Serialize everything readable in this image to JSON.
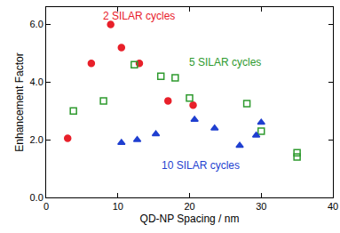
{
  "chart_data": {
    "type": "scatter",
    "x_label": "QD-NP Spacing / nm",
    "y_label": "Enhancement Factor",
    "xlim": [
      0,
      40
    ],
    "xticks": [
      0,
      10,
      20,
      30,
      40
    ],
    "ylim": [
      0,
      6.6
    ],
    "yticks": [
      {
        "value": 0,
        "label": "0.0"
      },
      {
        "value": 2,
        "label": "2.0"
      },
      {
        "value": 4,
        "label": "4.0"
      },
      {
        "value": 6,
        "label": "6.0"
      }
    ],
    "grid": false,
    "series": [
      {
        "name": "2 SILAR cycles",
        "color": "#e8202a",
        "marker": "circle",
        "x": [
          3,
          6.3,
          9,
          10.5,
          13,
          17,
          20.5
        ],
        "values": [
          2.05,
          4.65,
          6.0,
          5.2,
          4.65,
          3.35,
          3.2
        ]
      },
      {
        "name": "5 SILAR cycles",
        "color": "#2e9a2e",
        "marker": "square-open",
        "x": [
          3.8,
          8,
          12.3,
          16,
          18,
          20,
          28,
          30,
          35,
          35
        ],
        "values": [
          3.0,
          3.35,
          4.6,
          4.2,
          4.15,
          3.45,
          3.25,
          2.3,
          1.55,
          1.4
        ]
      },
      {
        "name": "10 SILAR cycles",
        "color": "#1f3fd0",
        "marker": "triangle-up",
        "x": [
          10.5,
          12.7,
          15.3,
          20.7,
          23.5,
          27,
          29.3,
          30
        ],
        "values": [
          1.9,
          2.0,
          2.2,
          2.7,
          2.4,
          1.8,
          2.15,
          2.6
        ]
      }
    ],
    "annotations": [
      {
        "text": "2 SILAR cycles",
        "x": 13,
        "y": 6.3,
        "color": "#e8202a"
      },
      {
        "text": "5 SILAR cycles",
        "x": 25,
        "y": 4.7,
        "color": "#2e9a2e"
      },
      {
        "text": "10 SILAR cycles",
        "x": 21.5,
        "y": 1.1,
        "color": "#1f3fd0"
      }
    ]
  }
}
